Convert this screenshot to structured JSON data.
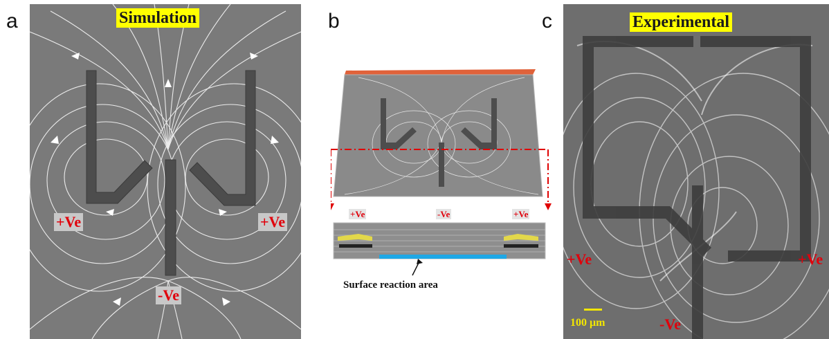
{
  "panels": {
    "a": {
      "letter": "a",
      "title": "Simulation",
      "labels": {
        "left_electrode": "+Ve",
        "right_electrode": "+Ve",
        "center_electrode": "-Ve"
      }
    },
    "b": {
      "letter": "b",
      "labels": {
        "left_electrode": "+Ve",
        "center_electrode": "-Ve",
        "right_electrode": "+Ve"
      },
      "caption": "Surface reaction area"
    },
    "c": {
      "letter": "c",
      "title": "Experimental",
      "labels": {
        "left_electrode": "+Ve",
        "right_electrode": "+Ve",
        "center_electrode": "-Ve"
      },
      "scale_bar": "100 μm"
    }
  },
  "colors": {
    "field_background": "#7a7a7a",
    "electrode": "#4d4d4d",
    "streamline": "#ffffff",
    "title_highlight": "#ffff00",
    "label_red": "#e0000b",
    "reaction_area": "#1fa8e6",
    "top_plate": "#e0623a",
    "section_line": "#e00000"
  }
}
